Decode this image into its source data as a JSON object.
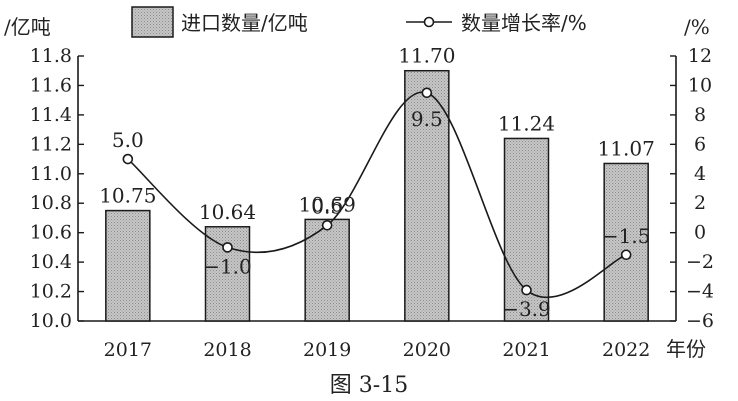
{
  "chart_data": {
    "type": "bar",
    "categories": [
      "2017",
      "2018",
      "2019",
      "2020",
      "2021",
      "2022"
    ],
    "series": [
      {
        "name": "进口数量/亿吨",
        "type": "bar",
        "axis": "left",
        "values": [
          10.75,
          10.64,
          10.69,
          11.7,
          11.24,
          11.07
        ]
      },
      {
        "name": "数量增长率/%",
        "type": "line",
        "axis": "right",
        "values": [
          5.0,
          -1.0,
          0.5,
          9.5,
          -3.9,
          -1.5
        ]
      }
    ],
    "bar_labels": [
      "10.75",
      "10.64",
      "10.69",
      "11.70",
      "11.24",
      "11.07"
    ],
    "line_labels": [
      "5.0",
      "−1.0",
      "0.5",
      "9.5",
      "−3.9",
      "−1.5"
    ],
    "ylabel_left": "/亿吨",
    "ylabel_right": "/%",
    "xlabel": "年份",
    "ylim_left": [
      10.0,
      11.8
    ],
    "ylim_right": [
      -6,
      12
    ],
    "yticks_left": [
      "10.0",
      "10.2",
      "10.4",
      "10.6",
      "10.8",
      "11.0",
      "11.2",
      "11.4",
      "11.6",
      "11.8"
    ],
    "yticks_right": [
      "−6",
      "−4",
      "−2",
      "0",
      "2",
      "4",
      "6",
      "8",
      "10",
      "12"
    ],
    "legend_position": "top",
    "grid": false,
    "caption": "图 3-15",
    "colors": {
      "bar_fill": "#bdbdbd",
      "bar_edge": "#1a1a1a",
      "line": "#1a1a1a",
      "marker_fill": "#ffffff"
    }
  }
}
